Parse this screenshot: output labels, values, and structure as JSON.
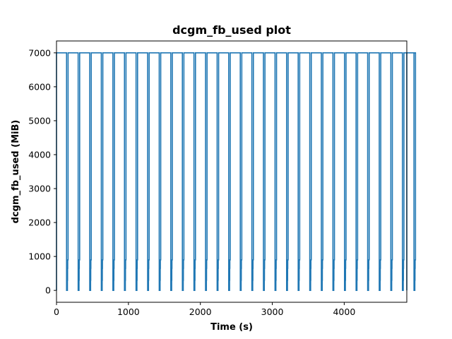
{
  "chart_data": {
    "type": "line",
    "title": "dcgm_fb_used plot",
    "xlabel": "Time (s)",
    "ylabel": "dcgm_fb_used (MiB)",
    "xlim": [
      0,
      4870
    ],
    "ylim": [
      -350,
      7350
    ],
    "xticks": [
      0,
      1000,
      2000,
      3000,
      4000
    ],
    "yticks": [
      0,
      1000,
      2000,
      3000,
      4000,
      5000,
      6000,
      7000
    ],
    "grid": false,
    "series": [
      {
        "color": "#1f77b4",
        "cycle": {
          "start": 0,
          "period": 161,
          "count": 31,
          "high_value": 7000,
          "high_end_offset": 140,
          "low_value": 0,
          "low_end_offset": 152,
          "step1_value": 300,
          "step1_end_offset": 154,
          "step2_value": 650,
          "step2_end_offset": 156,
          "step3_value": 900
        },
        "x_end": 4870,
        "end_value": 0
      }
    ]
  }
}
